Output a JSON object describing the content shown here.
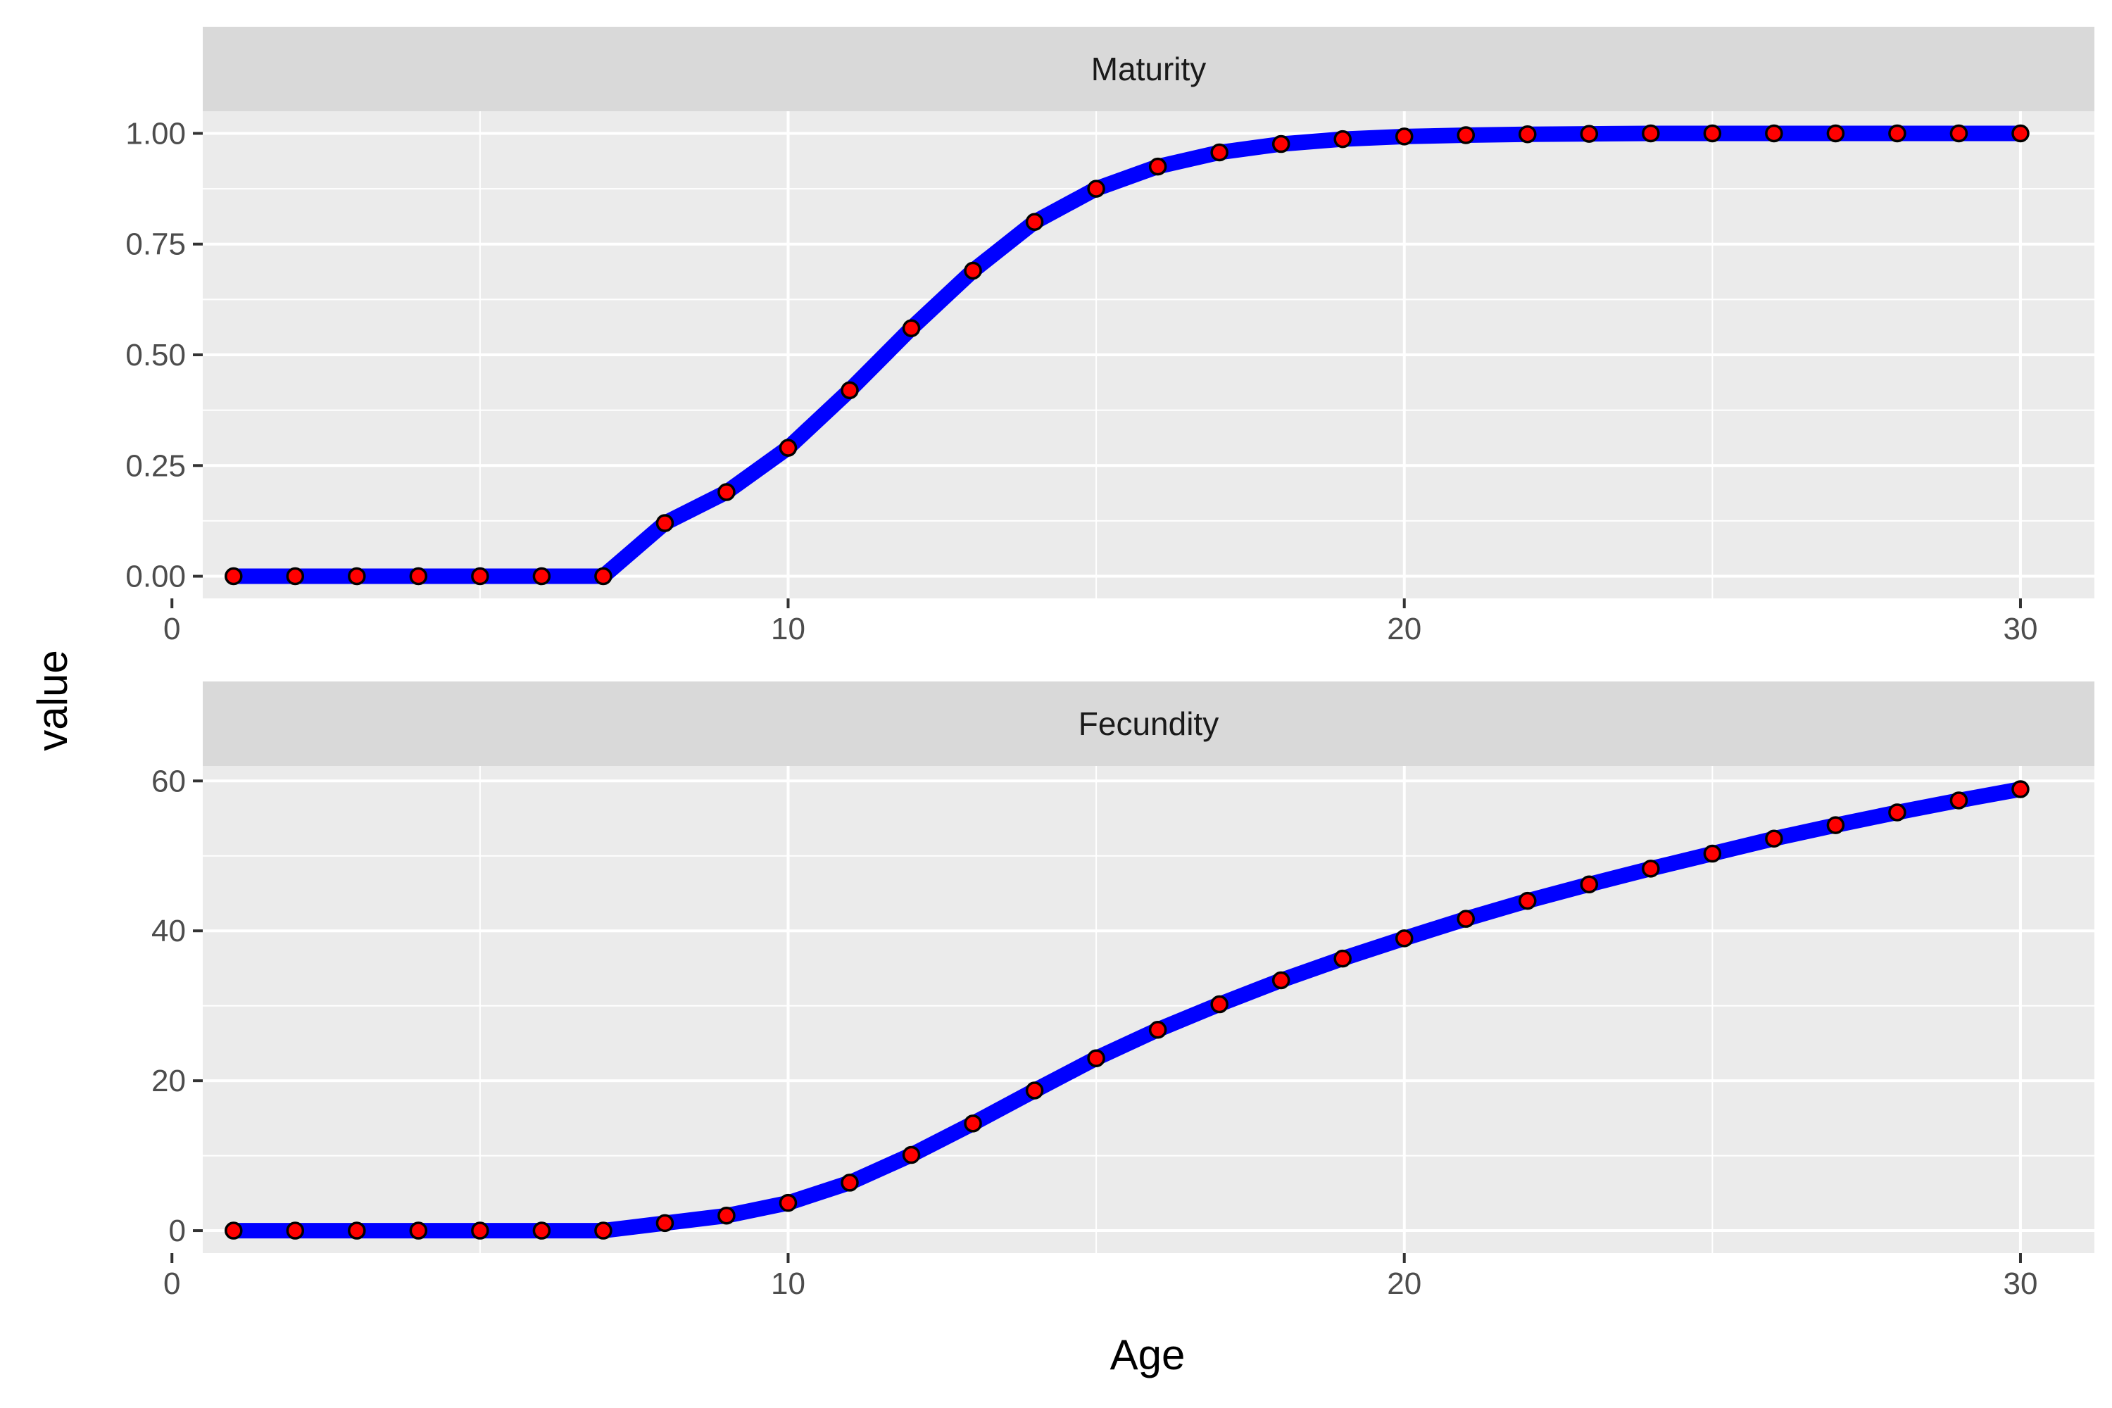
{
  "chart_data": {
    "type": "line",
    "facet_layout": "stacked vertically, shared x axis",
    "xlabel": "Age",
    "ylabel": "value",
    "grid": true,
    "line_color": "#0000ff",
    "point_fill": "#ff0000",
    "point_stroke": "#000000",
    "panel_background": "#ebebeb",
    "strip_background": "#d9d9d9",
    "x": [
      1,
      2,
      3,
      4,
      5,
      6,
      7,
      8,
      9,
      10,
      11,
      12,
      13,
      14,
      15,
      16,
      17,
      18,
      19,
      20,
      21,
      22,
      23,
      24,
      25,
      26,
      27,
      28,
      29,
      30
    ],
    "xlim": [
      0.5,
      31.2
    ],
    "xticks": [
      0,
      10,
      20,
      30
    ],
    "xtick_labels": [
      "0",
      "10",
      "20",
      "30"
    ],
    "panels": [
      {
        "strip_label": "Maturity",
        "ylim": [
          -0.05,
          1.05
        ],
        "yticks": [
          0,
          0.25,
          0.5,
          0.75,
          1.0
        ],
        "ytick_labels": [
          "0.00",
          "0.25",
          "0.50",
          "0.75",
          "1.00"
        ],
        "values": [
          0,
          0,
          0,
          0,
          0,
          0,
          0,
          0.12,
          0.19,
          0.29,
          0.42,
          0.56,
          0.69,
          0.8,
          0.875,
          0.925,
          0.957,
          0.976,
          0.987,
          0.993,
          0.996,
          0.998,
          0.999,
          1.0,
          1.0,
          1.0,
          1.0,
          1.0,
          1.0,
          1.0
        ]
      },
      {
        "strip_label": "Fecundity",
        "ylim": [
          -3,
          62
        ],
        "yticks": [
          0,
          20,
          40,
          60
        ],
        "ytick_labels": [
          "0",
          "20",
          "40",
          "60"
        ],
        "values": [
          0,
          0,
          0,
          0,
          0,
          0,
          0,
          1.0,
          2.0,
          3.7,
          6.4,
          10.1,
          14.3,
          18.7,
          23.0,
          26.8,
          30.2,
          33.4,
          36.3,
          39.0,
          41.6,
          44.0,
          46.2,
          48.3,
          50.3,
          52.3,
          54.1,
          55.8,
          57.4,
          58.9
        ]
      }
    ]
  }
}
